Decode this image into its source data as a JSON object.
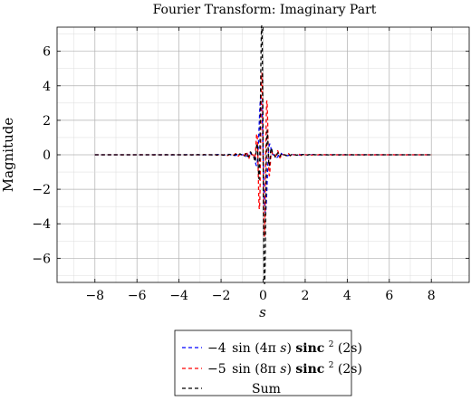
{
  "chart_data": {
    "type": "line",
    "title": "Fourier Transform: Imaginary Part",
    "xlabel": "s",
    "ylabel": "Magnitude",
    "xlim": [
      -9.8,
      9.8
    ],
    "ylim": [
      -7.4,
      7.4
    ],
    "grid": true,
    "x_ticks": [
      -8,
      -6,
      -4,
      -2,
      0,
      2,
      4,
      6,
      8
    ],
    "x_tick_labels": [
      "−8",
      "−6",
      "−4",
      "−2",
      "0",
      "2",
      "4",
      "6",
      "8"
    ],
    "y_ticks": [
      -6,
      -4,
      -2,
      0,
      2,
      4,
      6
    ],
    "y_tick_labels": [
      "−6",
      "−4",
      "−2",
      "0",
      "2",
      "4",
      "6"
    ],
    "x_domain": [
      -8,
      8
    ],
    "legend_position": "bottom-center, below plot",
    "series": [
      {
        "name": "−4 sin(4πs) sinc²(2s)",
        "legend_coefficient": "−4",
        "legend_func": "sin",
        "legend_argument": "(4π",
        "legend_variable": "s",
        "legend_bold": "sinc",
        "legend_exponent": "2",
        "legend_tail": "(2s)",
        "amplitude": -4,
        "sin_frequency": 4,
        "sinc_scale": 2,
        "color": "#0000ff",
        "style": "dashed"
      },
      {
        "name": "−5 sin(8πs) sinc²(2s)",
        "legend_coefficient": "−5",
        "legend_func": "sin",
        "legend_argument": "(8π",
        "legend_variable": "s",
        "legend_bold": "sinc",
        "legend_exponent": "2",
        "legend_tail": "(2s)",
        "amplitude": -5,
        "sin_frequency": 8,
        "sinc_scale": 2,
        "color": "#ff0000",
        "style": "dashed"
      },
      {
        "name": "Sum",
        "color": "#000000",
        "style": "dashed"
      }
    ]
  }
}
